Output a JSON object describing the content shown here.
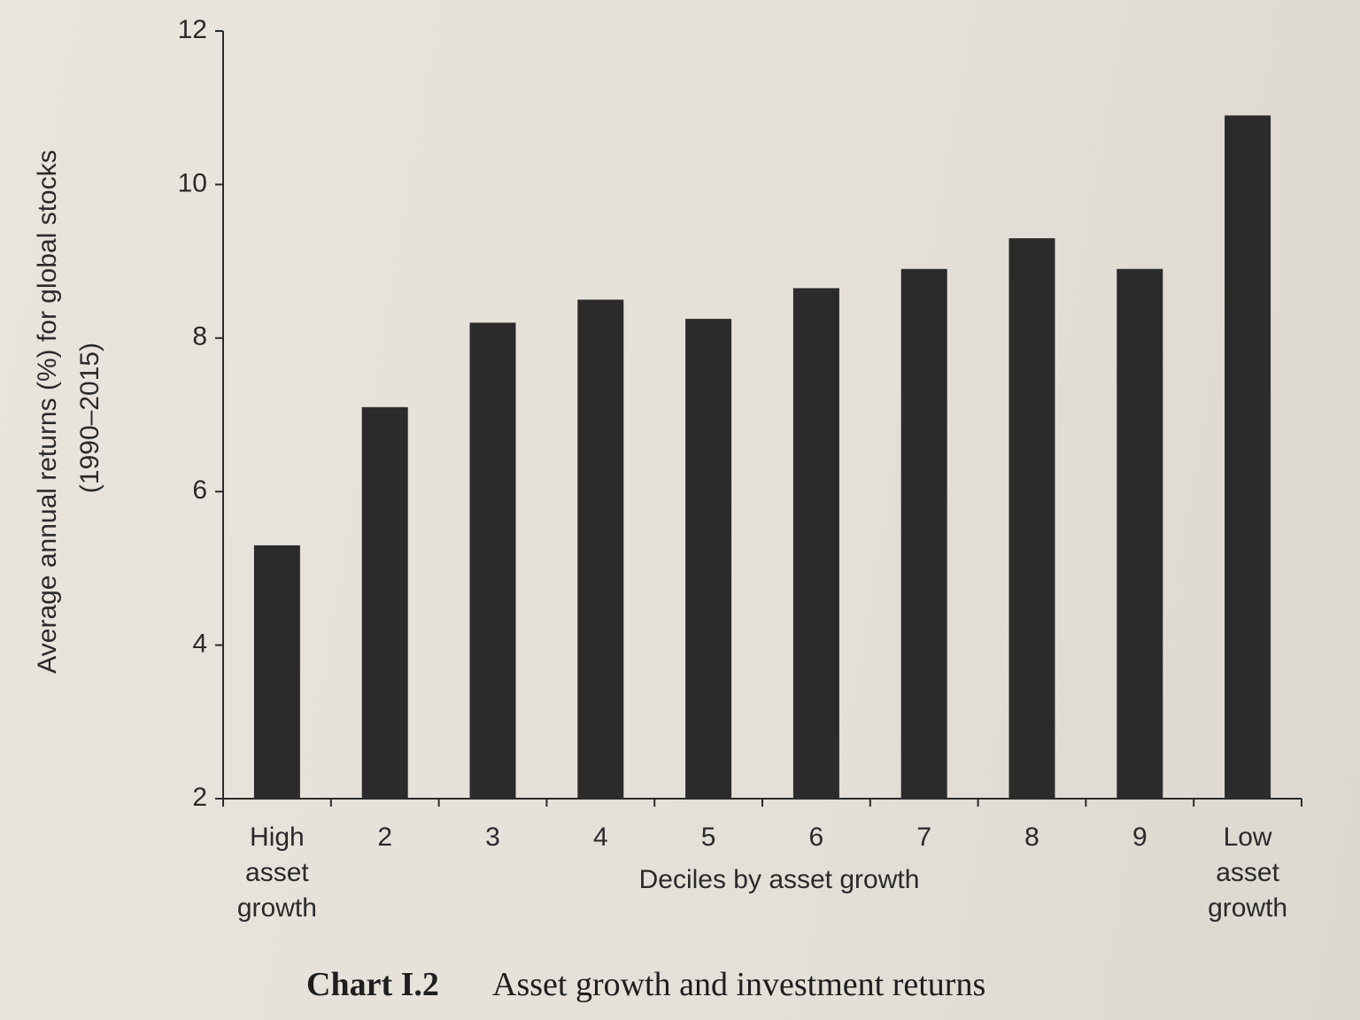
{
  "chart_data": {
    "type": "bar",
    "caption_label": "Chart I.2",
    "title": "Asset growth and investment returns",
    "xlabel": "Deciles by asset growth",
    "ylabel": [
      "Average annual returns (%) for global stocks",
      "(1990–2015)"
    ],
    "categories": [
      "High asset growth",
      "2",
      "3",
      "4",
      "5",
      "6",
      "7",
      "8",
      "9",
      "Low asset growth"
    ],
    "values": [
      5.3,
      7.1,
      8.2,
      8.5,
      8.25,
      8.65,
      8.9,
      9.3,
      8.9,
      10.9
    ],
    "color": "#2b2b2b",
    "ylim": [
      2,
      12
    ],
    "yticks": [
      2,
      4,
      6,
      8,
      10,
      12
    ],
    "grid": false
  }
}
